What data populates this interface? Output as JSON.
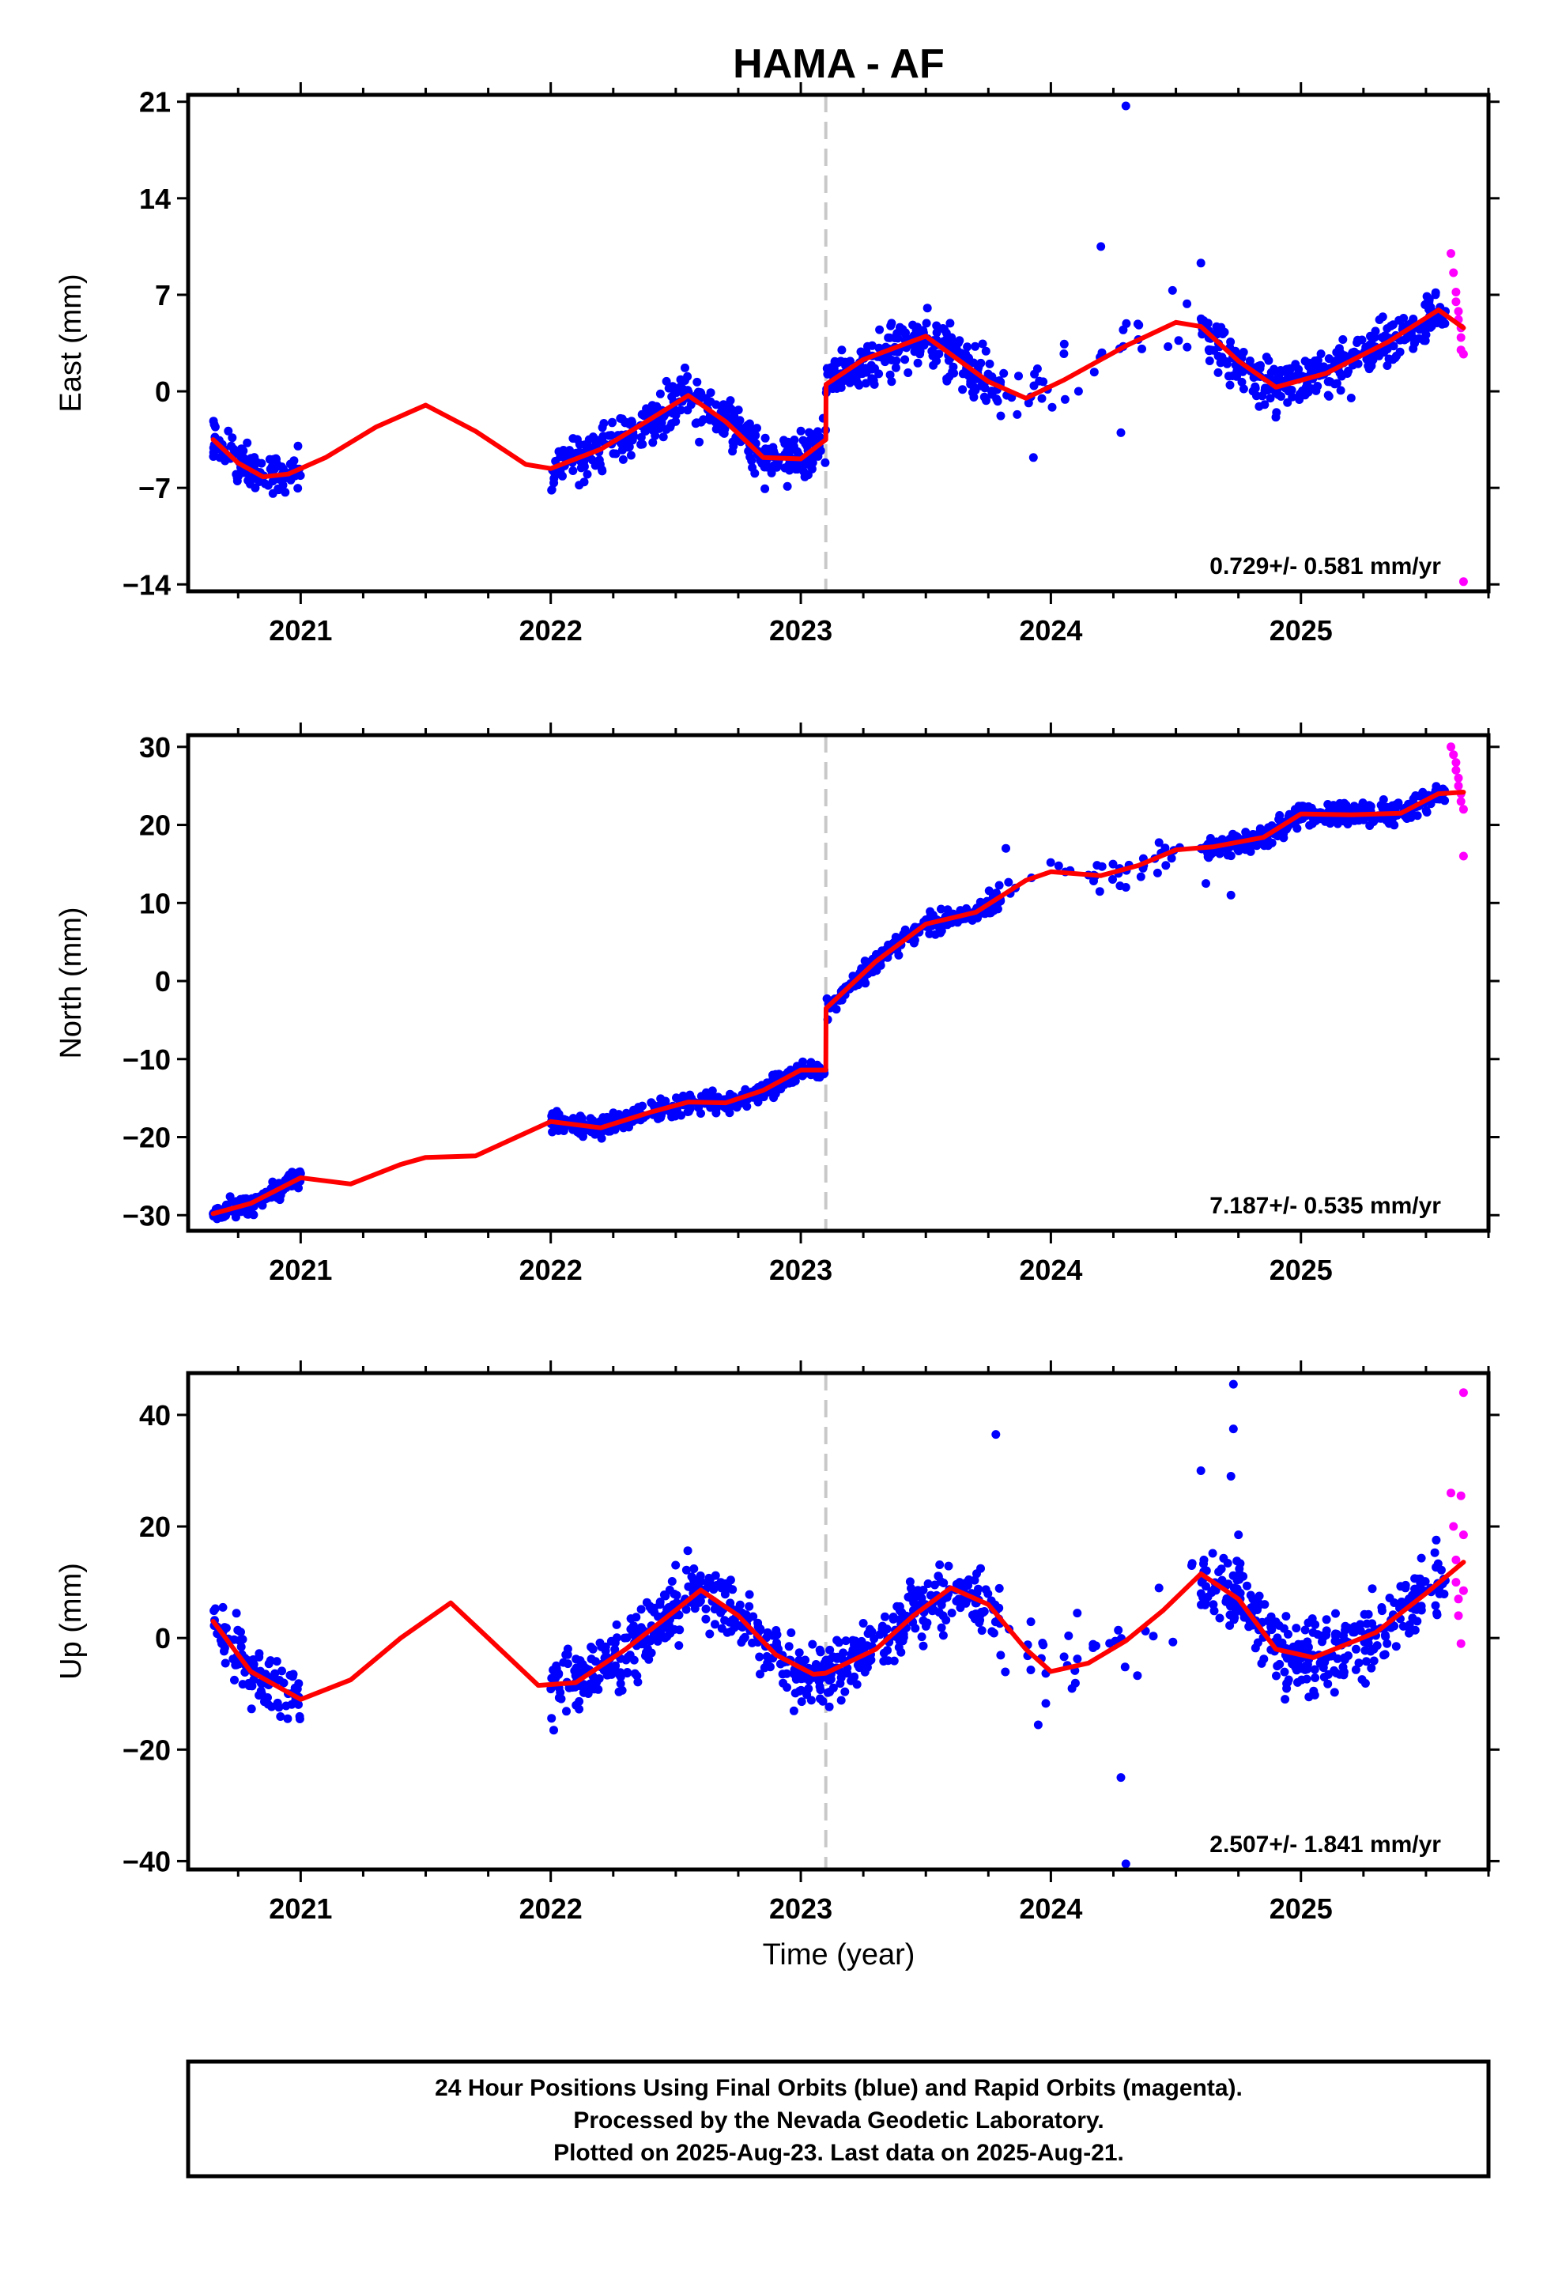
{
  "figure": {
    "title": "HAMA - AF",
    "xlabel": "Time (year)",
    "footer_lines": [
      "24 Hour Positions Using Final Orbits (blue) and Rapid Orbits (magenta).",
      "Processed by the Nevada Geodetic Laboratory.",
      "Plotted on 2025-Aug-23. Last data on 2025-Aug-21."
    ],
    "colors": {
      "final_orbits": "#0000ff",
      "rapid_orbits": "#ff00ff",
      "model_fit": "#ff0000",
      "event_line": "#c8c8c8"
    }
  },
  "chart_data": [
    {
      "type": "scatter",
      "component": "east",
      "ylabel": "East (mm)",
      "rate_label": "0.729+/- 0.581 mm/yr",
      "xlim": [
        2020.55,
        2025.75
      ],
      "ylim": [
        -14.5,
        21.5
      ],
      "yticks": [
        -14,
        -7,
        0,
        7,
        14,
        21
      ],
      "xticks": [
        2021,
        2022,
        2023,
        2024,
        2025
      ],
      "event_line_x": 2023.1,
      "fit": {
        "name": "model",
        "x": [
          2020.65,
          2020.75,
          2020.85,
          2020.95,
          2021.1,
          2021.3,
          2021.5,
          2021.7,
          2021.9,
          2022.0,
          2022.2,
          2022.4,
          2022.55,
          2022.7,
          2022.85,
          2023.0,
          2023.1,
          2023.101,
          2023.25,
          2023.5,
          2023.75,
          2023.9,
          2024.05,
          2024.3,
          2024.5,
          2024.6,
          2024.75,
          2024.9,
          2025.1,
          2025.35,
          2025.55,
          2025.65
        ],
        "y": [
          -3.5,
          -5.2,
          -6.2,
          -6.0,
          -4.8,
          -2.6,
          -1.0,
          -2.9,
          -5.3,
          -5.6,
          -4.2,
          -2.0,
          -0.3,
          -2.2,
          -4.8,
          -4.9,
          -3.5,
          0.5,
          2.3,
          4.0,
          0.7,
          -0.5,
          0.8,
          3.3,
          5.0,
          4.7,
          2.2,
          0.3,
          1.3,
          3.6,
          5.9,
          4.6
        ]
      },
      "final_orbits": {
        "name": "final orbits (blue)",
        "segments": [
          {
            "x": [
              2020.65,
              2021.0
            ],
            "n": 110,
            "sd": 1.1
          },
          {
            "x": [
              2022.0,
              2023.1
            ],
            "n": 380,
            "sd": 1.3
          },
          {
            "x": [
              2023.1,
              2023.8
            ],
            "n": 230,
            "sd": 1.3
          },
          {
            "x": [
              2023.8,
              2024.6
            ],
            "n": 35,
            "sd": 2.0
          },
          {
            "x": [
              2024.6,
              2025.58
            ],
            "n": 330,
            "sd": 1.2
          }
        ],
        "outliers": {
          "x": [
            2024.3,
            2023.93,
            2024.28,
            2024.6,
            2024.2
          ],
          "y": [
            20.7,
            -4.8,
            -3.0,
            9.3,
            10.5
          ]
        }
      },
      "rapid_orbits": {
        "name": "rapid orbits (magenta)",
        "x": [
          2025.6,
          2025.61,
          2025.62,
          2025.62,
          2025.63,
          2025.63,
          2025.64,
          2025.64,
          2025.64,
          2025.65,
          2025.65
        ],
        "y": [
          10.0,
          8.6,
          7.2,
          6.5,
          5.8,
          5.2,
          4.6,
          3.9,
          3.0,
          2.7,
          -13.8
        ]
      }
    },
    {
      "type": "scatter",
      "component": "north",
      "ylabel": "North (mm)",
      "rate_label": "7.187+/- 0.535 mm/yr",
      "xlim": [
        2020.55,
        2025.75
      ],
      "ylim": [
        -32,
        31.5
      ],
      "yticks": [
        -30,
        -20,
        -10,
        0,
        10,
        20,
        30
      ],
      "xticks": [
        2021,
        2022,
        2023,
        2024,
        2025
      ],
      "event_line_x": 2023.1,
      "fit": {
        "name": "model",
        "x": [
          2020.65,
          2020.8,
          2021.0,
          2021.2,
          2021.4,
          2021.5,
          2021.7,
          2021.85,
          2022.0,
          2022.2,
          2022.4,
          2022.55,
          2022.7,
          2022.85,
          2023.0,
          2023.1,
          2023.101,
          2023.3,
          2023.5,
          2023.7,
          2023.9,
          2024.0,
          2024.2,
          2024.35,
          2024.5,
          2024.65,
          2024.85,
          2025.0,
          2025.2,
          2025.4,
          2025.55,
          2025.65
        ],
        "y": [
          -29.8,
          -28.5,
          -25.2,
          -26.0,
          -23.5,
          -22.6,
          -22.4,
          -20.2,
          -18.0,
          -18.8,
          -16.8,
          -15.5,
          -15.6,
          -14.0,
          -11.4,
          -11.4,
          -3.5,
          2.5,
          7.3,
          8.8,
          12.9,
          14.0,
          13.5,
          14.8,
          16.8,
          17.2,
          18.4,
          21.4,
          21.3,
          21.5,
          24.0,
          24.2
        ]
      },
      "final_orbits": {
        "name": "final orbits (blue)",
        "segments": [
          {
            "x": [
              2020.65,
              2021.0
            ],
            "n": 110,
            "sd": 0.9
          },
          {
            "x": [
              2022.0,
              2023.1
            ],
            "n": 380,
            "sd": 0.9
          },
          {
            "x": [
              2023.1,
              2023.8
            ],
            "n": 230,
            "sd": 0.9
          },
          {
            "x": [
              2023.8,
              2024.6
            ],
            "n": 35,
            "sd": 1.3
          },
          {
            "x": [
              2024.6,
              2025.58
            ],
            "n": 330,
            "sd": 1.0
          }
        ],
        "outliers": {
          "x": [
            2024.72,
            2024.62,
            2024.3,
            2023.82
          ],
          "y": [
            11.0,
            12.5,
            12.0,
            17.0
          ]
        }
      },
      "rapid_orbits": {
        "name": "rapid orbits (magenta)",
        "x": [
          2025.6,
          2025.61,
          2025.62,
          2025.62,
          2025.63,
          2025.63,
          2025.64,
          2025.64,
          2025.65,
          2025.65
        ],
        "y": [
          30.0,
          29.0,
          28.0,
          27.0,
          26.0,
          25.0,
          24.0,
          23.0,
          22.0,
          16.0
        ]
      }
    },
    {
      "type": "scatter",
      "component": "up",
      "ylabel": "Up (mm)",
      "rate_label": "2.507+/- 1.841 mm/yr",
      "xlim": [
        2020.55,
        2025.75
      ],
      "ylim": [
        -41.5,
        47.5
      ],
      "yticks": [
        -40,
        -20,
        0,
        20,
        40
      ],
      "xticks": [
        2021,
        2022,
        2023,
        2024,
        2025
      ],
      "event_line_x": 2023.1,
      "fit": {
        "name": "model",
        "x": [
          2020.65,
          2020.8,
          2021.0,
          2021.2,
          2021.4,
          2021.6,
          2021.75,
          2021.95,
          2022.1,
          2022.3,
          2022.5,
          2022.6,
          2022.75,
          2022.9,
          2023.05,
          2023.1,
          2023.3,
          2023.45,
          2023.6,
          2023.75,
          2023.9,
          2024.0,
          2024.15,
          2024.3,
          2024.45,
          2024.6,
          2024.75,
          2024.9,
          2025.05,
          2025.3,
          2025.5,
          2025.65
        ],
        "y": [
          3.0,
          -6.0,
          -11.0,
          -7.5,
          0.0,
          6.3,
          0.0,
          -8.5,
          -8.0,
          -2.0,
          5.0,
          8.6,
          4.0,
          -3.0,
          -6.5,
          -6.3,
          -2.0,
          4.0,
          9.0,
          6.0,
          -2.0,
          -6.0,
          -4.5,
          -0.5,
          5.0,
          11.5,
          7.0,
          -2.0,
          -3.5,
          1.0,
          8.0,
          13.6
        ]
      },
      "final_orbits": {
        "name": "final orbits (blue)",
        "segments": [
          {
            "x": [
              2020.65,
              2021.0
            ],
            "n": 110,
            "sd": 3.5
          },
          {
            "x": [
              2022.0,
              2023.1
            ],
            "n": 380,
            "sd": 4.0
          },
          {
            "x": [
              2023.1,
              2023.8
            ],
            "n": 230,
            "sd": 4.0
          },
          {
            "x": [
              2023.8,
              2024.6
            ],
            "n": 35,
            "sd": 8.0
          },
          {
            "x": [
              2024.6,
              2025.58
            ],
            "n": 330,
            "sd": 4.5
          }
        ],
        "outliers": {
          "x": [
            2024.3,
            2024.73,
            2024.73,
            2024.72,
            2024.6,
            2023.78,
            2024.28,
            2024.75
          ],
          "y": [
            -40.5,
            45.5,
            37.5,
            29.0,
            30.0,
            36.5,
            -25.0,
            18.5
          ]
        }
      },
      "rapid_orbits": {
        "name": "rapid orbits (magenta)",
        "x": [
          2025.6,
          2025.61,
          2025.62,
          2025.62,
          2025.63,
          2025.63,
          2025.64,
          2025.64,
          2025.65,
          2025.65,
          2025.65
        ],
        "y": [
          26.0,
          20.0,
          14.0,
          10.0,
          7.0,
          4.0,
          -1.0,
          25.5,
          18.5,
          8.5,
          44.0
        ]
      }
    }
  ]
}
